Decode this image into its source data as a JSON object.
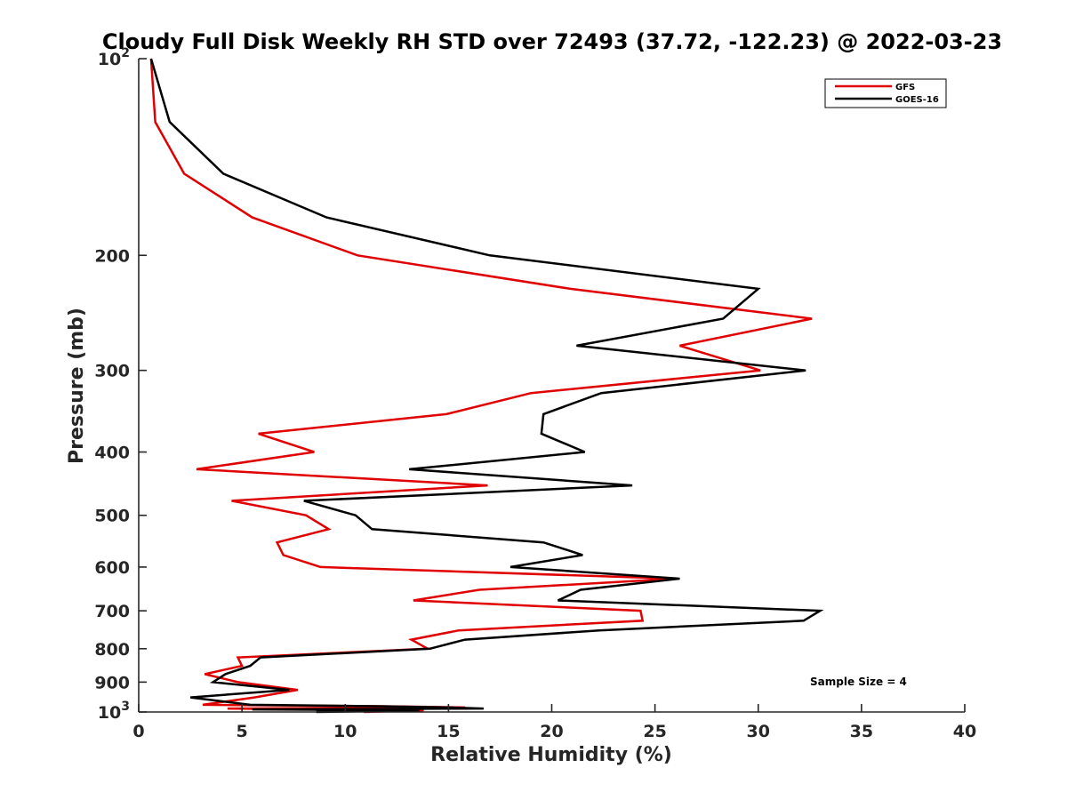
{
  "chart_data": {
    "type": "line",
    "title": "Cloudy Full Disk Weekly RH STD over 72493 (37.72, -122.23) @ 2022-03-23",
    "xlabel": "Relative Humidity (%)",
    "ylabel": "Pressure (mb)",
    "xlim": [
      0,
      40
    ],
    "ylim": [
      100,
      1000
    ],
    "yscale": "log",
    "y_reversed": true,
    "grid": false,
    "legend_position": "top-right",
    "x_ticks": [
      "0",
      "5",
      "10",
      "15",
      "20",
      "25",
      "30",
      "35",
      "40"
    ],
    "y_ticks": [
      {
        "value": 100,
        "base": "10",
        "exp": "2"
      },
      {
        "value": 200,
        "label": "200"
      },
      {
        "value": 300,
        "label": "300"
      },
      {
        "value": 400,
        "label": "400"
      },
      {
        "value": 500,
        "label": "500"
      },
      {
        "value": 600,
        "label": "600"
      },
      {
        "value": 700,
        "label": "700"
      },
      {
        "value": 800,
        "label": "800"
      },
      {
        "value": 900,
        "label": "900"
      },
      {
        "value": 1000,
        "base": "10",
        "exp": "3"
      }
    ],
    "series": [
      {
        "name": "GFS",
        "color": "#e00000",
        "points": [
          [
            0.6,
            100
          ],
          [
            0.8,
            125
          ],
          [
            2.2,
            150
          ],
          [
            5.5,
            175
          ],
          [
            10.6,
            200
          ],
          [
            20.9,
            225
          ],
          [
            32.6,
            250
          ],
          [
            26.2,
            275
          ],
          [
            30.1,
            300
          ],
          [
            19,
            325
          ],
          [
            14.9,
            350
          ],
          [
            5.8,
            375
          ],
          [
            8.5,
            400
          ],
          [
            2.8,
            425
          ],
          [
            16.9,
            450
          ],
          [
            4.5,
            475
          ],
          [
            8.1,
            500
          ],
          [
            9.2,
            525
          ],
          [
            6.7,
            550
          ],
          [
            7,
            575
          ],
          [
            8.8,
            600
          ],
          [
            26,
            625
          ],
          [
            16.5,
            650
          ],
          [
            13.3,
            675
          ],
          [
            24.3,
            700
          ],
          [
            24.4,
            725
          ],
          [
            15.5,
            750
          ],
          [
            13.2,
            775
          ],
          [
            14,
            800
          ],
          [
            4.8,
            825
          ],
          [
            5,
            850
          ],
          [
            3.2,
            875
          ],
          [
            4.8,
            900
          ],
          [
            7.7,
            925
          ],
          [
            5.6,
            950
          ],
          [
            3.1,
            975
          ],
          [
            12.2,
            980
          ],
          [
            15.8,
            984
          ],
          [
            4.3,
            988
          ],
          [
            8.5,
            991
          ],
          [
            13.8,
            994
          ],
          [
            10.9,
            1000
          ]
        ]
      },
      {
        "name": "GOES-16",
        "color": "#000000",
        "points": [
          [
            0.6,
            100
          ],
          [
            1.5,
            125
          ],
          [
            4.1,
            150
          ],
          [
            9.1,
            175
          ],
          [
            17,
            200
          ],
          [
            30,
            225
          ],
          [
            28.3,
            250
          ],
          [
            21.2,
            275
          ],
          [
            32.3,
            300
          ],
          [
            22.4,
            325
          ],
          [
            19.6,
            350
          ],
          [
            19.5,
            375
          ],
          [
            21.6,
            400
          ],
          [
            13.1,
            425
          ],
          [
            23.9,
            450
          ],
          [
            8,
            475
          ],
          [
            10.5,
            500
          ],
          [
            11.3,
            525
          ],
          [
            19.6,
            550
          ],
          [
            21.5,
            575
          ],
          [
            18,
            600
          ],
          [
            26.2,
            625
          ],
          [
            21.4,
            650
          ],
          [
            20.3,
            675
          ],
          [
            33,
            700
          ],
          [
            32.2,
            725
          ],
          [
            22.3,
            750
          ],
          [
            15.8,
            775
          ],
          [
            14.1,
            800
          ],
          [
            5.9,
            825
          ],
          [
            5.4,
            850
          ],
          [
            4.2,
            875
          ],
          [
            3.6,
            900
          ],
          [
            7.3,
            925
          ],
          [
            2.5,
            950
          ],
          [
            5.4,
            975
          ],
          [
            11.9,
            980
          ],
          [
            15,
            984
          ],
          [
            16.7,
            988
          ],
          [
            5.5,
            991
          ],
          [
            13.6,
            994
          ],
          [
            8.6,
            1000
          ]
        ]
      }
    ],
    "annotations": [
      "Sample Size = 4"
    ]
  }
}
